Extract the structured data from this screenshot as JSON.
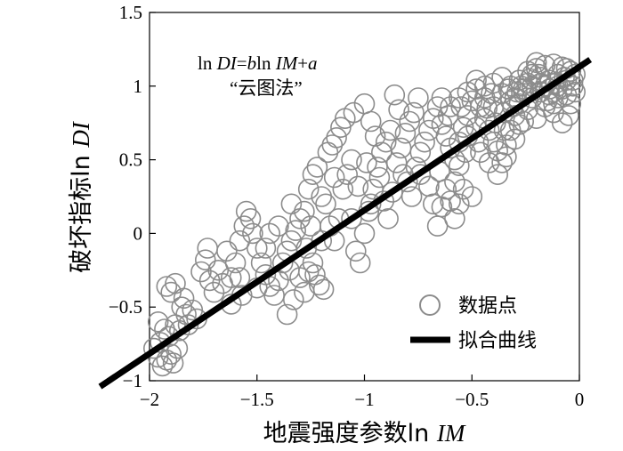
{
  "chart_data": {
    "type": "scatter",
    "xlabel_prefix": "地震强度参数ln ",
    "xlabel_var": "IM",
    "ylabel_prefix": "破坏指标ln ",
    "ylabel_var": "DI",
    "xlim": [
      -2,
      0
    ],
    "ylim": [
      -1,
      1.5
    ],
    "x_ticks": [
      -2,
      -1.5,
      -1,
      -0.5,
      0
    ],
    "x_tick_labels": [
      "−2",
      "−1.5",
      "−1",
      "−0.5",
      "0"
    ],
    "y_ticks": [
      -1,
      -0.5,
      0,
      0.5,
      1,
      1.5
    ],
    "y_tick_labels": [
      "−1",
      "−0.5",
      "0",
      "0.5",
      "1",
      "1.5"
    ],
    "annotation_formula": {
      "p1": "ln ",
      "v1": "DI",
      "p2": "=",
      "v2": "b",
      "p3": "ln ",
      "v3": "IM",
      "p4": "+",
      "v4": "a"
    },
    "annotation_method": "“云图法”",
    "legend_position": "bottom-right",
    "series": [
      {
        "name": "数据点",
        "marker": "circle-open",
        "color": "#8c8c8c",
        "points": [
          [
            -1.98,
            -0.78
          ],
          [
            -1.96,
            -0.84
          ],
          [
            -1.94,
            -0.9
          ],
          [
            -1.92,
            -0.86
          ],
          [
            -1.9,
            -0.82
          ],
          [
            -1.89,
            -0.88
          ],
          [
            -1.95,
            -0.74
          ],
          [
            -1.93,
            -0.65
          ],
          [
            -1.91,
            -0.7
          ],
          [
            -1.88,
            -0.62
          ],
          [
            -1.92,
            -0.36
          ],
          [
            -1.9,
            -0.4
          ],
          [
            -1.88,
            -0.34
          ],
          [
            -1.85,
            -0.5
          ],
          [
            -1.83,
            -0.55
          ],
          [
            -1.8,
            -0.52
          ],
          [
            -1.86,
            -0.66
          ],
          [
            -1.78,
            -0.58
          ],
          [
            -1.96,
            -0.6
          ],
          [
            -1.84,
            -0.44
          ],
          [
            -1.72,
            -0.32
          ],
          [
            -1.7,
            -0.4
          ],
          [
            -1.68,
            -0.25
          ],
          [
            -1.66,
            -0.34
          ],
          [
            -1.74,
            -0.18
          ],
          [
            -1.73,
            -0.1
          ],
          [
            -1.62,
            -0.3
          ],
          [
            -1.6,
            -0.2
          ],
          [
            -1.58,
            -0.05
          ],
          [
            -1.56,
            0.05
          ],
          [
            -1.55,
            0.15
          ],
          [
            -1.53,
            0.1
          ],
          [
            -1.52,
            0.0
          ],
          [
            -1.5,
            -0.1
          ],
          [
            -1.48,
            -0.2
          ],
          [
            -1.46,
            -0.28
          ],
          [
            -1.57,
            -0.42
          ],
          [
            -1.62,
            -0.48
          ],
          [
            -1.5,
            -0.37
          ],
          [
            -1.4,
            -0.32
          ],
          [
            -1.38,
            -0.2
          ],
          [
            -1.36,
            -0.12
          ],
          [
            -1.34,
            -0.05
          ],
          [
            -1.32,
            0.02
          ],
          [
            -1.3,
            0.1
          ],
          [
            -1.28,
            0.15
          ],
          [
            -1.36,
            -0.55
          ],
          [
            -1.33,
            -0.45
          ],
          [
            -1.3,
            -0.3
          ],
          [
            -1.27,
            -0.1
          ],
          [
            -1.25,
            0.05
          ],
          [
            -1.24,
            -0.2
          ],
          [
            -1.23,
            -0.28
          ],
          [
            -1.21,
            -0.35
          ],
          [
            -1.19,
            -0.38
          ],
          [
            -1.26,
            0.3
          ],
          [
            -1.24,
            0.4
          ],
          [
            -1.22,
            0.45
          ],
          [
            -1.2,
            0.25
          ],
          [
            -1.18,
            0.2
          ],
          [
            -1.16,
            0.05
          ],
          [
            -1.14,
            -0.05
          ],
          [
            -1.12,
            0.1
          ],
          [
            -1.1,
            0.3
          ],
          [
            -1.08,
            0.4
          ],
          [
            -1.06,
            0.5
          ],
          [
            -1.15,
            0.6
          ],
          [
            -1.13,
            0.65
          ],
          [
            -1.11,
            0.72
          ],
          [
            -1.09,
            0.78
          ],
          [
            -1.06,
            0.1
          ],
          [
            -1.04,
            -0.12
          ],
          [
            -1.02,
            -0.2
          ],
          [
            -1.0,
            0.0
          ],
          [
            -0.98,
            0.15
          ],
          [
            -0.96,
            0.3
          ],
          [
            -0.94,
            0.45
          ],
          [
            -0.92,
            0.55
          ],
          [
            -0.9,
            0.62
          ],
          [
            -0.88,
            0.7
          ],
          [
            -1.05,
            0.82
          ],
          [
            -1.0,
            0.88
          ],
          [
            -0.97,
            0.76
          ],
          [
            -0.95,
            0.66
          ],
          [
            -0.93,
            0.38
          ],
          [
            -0.91,
            0.22
          ],
          [
            -0.89,
            0.1
          ],
          [
            -0.87,
            0.28
          ],
          [
            -0.85,
            0.48
          ],
          [
            -0.83,
            0.58
          ],
          [
            -0.81,
            0.68
          ],
          [
            -0.79,
            0.76
          ],
          [
            -0.77,
            0.82
          ],
          [
            -0.75,
            0.92
          ],
          [
            -0.86,
            0.94
          ],
          [
            -0.84,
            0.84
          ],
          [
            -0.82,
            0.4
          ],
          [
            -0.8,
            0.35
          ],
          [
            -0.78,
            0.25
          ],
          [
            -0.76,
            0.45
          ],
          [
            -0.74,
            0.55
          ],
          [
            -0.72,
            0.62
          ],
          [
            -0.7,
            0.7
          ],
          [
            -0.68,
            0.78
          ],
          [
            -0.66,
            0.86
          ],
          [
            -0.64,
            0.74
          ],
          [
            -0.62,
            0.66
          ],
          [
            -0.6,
            0.58
          ],
          [
            -0.58,
            0.5
          ],
          [
            -0.56,
            0.46
          ],
          [
            -0.7,
            0.32
          ],
          [
            -0.68,
            0.2
          ],
          [
            -0.66,
            0.05
          ],
          [
            -0.74,
            0.4
          ],
          [
            -0.62,
            0.3
          ],
          [
            -0.6,
            0.22
          ],
          [
            -0.58,
            0.35
          ],
          [
            -0.56,
            0.62
          ],
          [
            -0.54,
            0.72
          ],
          [
            -0.52,
            0.8
          ],
          [
            -0.5,
            0.9
          ],
          [
            -0.48,
            0.98
          ],
          [
            -0.46,
            0.86
          ],
          [
            -0.44,
            0.78
          ],
          [
            -0.42,
            0.7
          ],
          [
            -0.4,
            0.62
          ],
          [
            -0.38,
            0.56
          ],
          [
            -0.36,
            0.48
          ],
          [
            -0.34,
            0.6
          ],
          [
            -0.32,
            0.7
          ],
          [
            -0.3,
            0.8
          ],
          [
            -0.28,
            0.88
          ],
          [
            -0.26,
            0.95
          ],
          [
            -0.24,
            1.02
          ],
          [
            -0.22,
            1.08
          ],
          [
            -0.2,
            1.12
          ],
          [
            -0.18,
            1.06
          ],
          [
            -0.16,
            1.0
          ],
          [
            -0.14,
            0.94
          ],
          [
            -0.12,
            0.88
          ],
          [
            -0.1,
            0.92
          ],
          [
            -0.08,
            0.98
          ],
          [
            -0.06,
            1.04
          ],
          [
            -0.04,
            1.1
          ],
          [
            -0.02,
            1.08
          ],
          [
            -0.05,
            0.8
          ],
          [
            -0.08,
            0.75
          ],
          [
            -0.12,
            0.82
          ],
          [
            -0.16,
            0.86
          ],
          [
            -0.2,
            0.78
          ],
          [
            -0.24,
            0.84
          ],
          [
            -0.28,
            0.74
          ],
          [
            -0.32,
            0.9
          ],
          [
            -0.36,
            0.95
          ],
          [
            -0.4,
            0.86
          ],
          [
            -0.44,
            0.92
          ],
          [
            -0.48,
            0.72
          ],
          [
            -0.52,
            0.66
          ],
          [
            -0.46,
            0.55
          ],
          [
            -0.54,
            0.3
          ],
          [
            -0.5,
            0.25
          ],
          [
            -0.56,
            0.2
          ],
          [
            -0.58,
            0.1
          ],
          [
            -0.64,
            0.18
          ],
          [
            -0.42,
            0.48
          ],
          [
            -0.38,
            0.4
          ],
          [
            -0.34,
            0.52
          ],
          [
            -0.3,
            0.64
          ],
          [
            -0.26,
            0.76
          ],
          [
            -0.22,
            0.92
          ],
          [
            -0.18,
            0.96
          ],
          [
            -0.14,
            1.04
          ],
          [
            -0.1,
            1.08
          ],
          [
            -0.06,
            1.12
          ],
          [
            -0.03,
            1.0
          ],
          [
            -0.2,
            1.16
          ],
          [
            -0.16,
            1.14
          ],
          [
            -0.12,
            1.15
          ],
          [
            -0.08,
            1.13
          ],
          [
            -0.24,
            1.1
          ],
          [
            -0.28,
            1.04
          ],
          [
            -0.32,
            1.0
          ],
          [
            -0.36,
            1.06
          ],
          [
            -0.4,
            1.02
          ],
          [
            -0.44,
            1.0
          ],
          [
            -0.48,
            1.04
          ],
          [
            -0.52,
            0.96
          ],
          [
            -0.56,
            0.92
          ],
          [
            -0.6,
            0.86
          ],
          [
            -0.64,
            0.92
          ],
          [
            -0.3,
            0.92
          ],
          [
            -0.26,
            0.98
          ],
          [
            -0.22,
            1.0
          ],
          [
            -0.18,
            1.02
          ],
          [
            -0.14,
            0.98
          ],
          [
            -0.1,
            1.0
          ],
          [
            -0.06,
            0.94
          ],
          [
            -0.02,
            0.96
          ],
          [
            -0.04,
            0.88
          ],
          [
            -0.12,
            0.96
          ],
          [
            -1.42,
            -0.42
          ],
          [
            -1.44,
            0.0
          ],
          [
            -1.4,
            0.05
          ],
          [
            -1.35,
            -0.25
          ],
          [
            -1.17,
            0.55
          ],
          [
            -1.28,
            -0.4
          ],
          [
            -1.2,
            -0.05
          ],
          [
            -1.03,
            0.32
          ],
          [
            -0.99,
            0.48
          ],
          [
            -0.97,
            0.2
          ],
          [
            -0.65,
            0.42
          ],
          [
            -0.61,
            0.8
          ],
          [
            -0.55,
            0.86
          ],
          [
            -0.53,
            0.55
          ],
          [
            -0.47,
            0.62
          ],
          [
            -0.43,
            0.85
          ],
          [
            -0.39,
            0.75
          ],
          [
            -0.35,
            0.82
          ],
          [
            -0.33,
            0.98
          ],
          [
            -0.29,
            0.96
          ],
          [
            -1.46,
            -0.1
          ],
          [
            -1.64,
            -0.12
          ],
          [
            -1.76,
            -0.26
          ],
          [
            -1.82,
            -0.62
          ],
          [
            -1.87,
            -0.78
          ],
          [
            -1.58,
            -0.3
          ],
          [
            -1.44,
            -0.36
          ],
          [
            -1.34,
            0.2
          ],
          [
            -1.26,
            -0.26
          ],
          [
            -1.14,
            0.38
          ],
          [
            -0.15,
            0.9
          ],
          [
            -0.11,
            1.02
          ],
          [
            -0.07,
            1.06
          ],
          [
            -0.03,
            1.04
          ],
          [
            -0.19,
            1.08
          ],
          [
            -0.23,
            1.05
          ],
          [
            -0.27,
            1.0
          ],
          [
            -0.31,
            0.86
          ],
          [
            -0.35,
            0.7
          ],
          [
            -0.41,
            0.95
          ]
        ]
      },
      {
        "name": "拟合曲线",
        "type": "line",
        "color": "#000000",
        "points": [
          [
            -2.23,
            -1.04
          ],
          [
            0.05,
            1.18
          ]
        ]
      }
    ]
  }
}
